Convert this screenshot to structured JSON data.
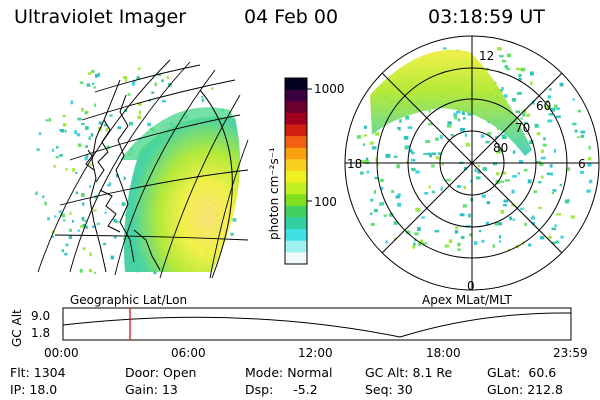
{
  "header": {
    "title": "Ultraviolet Imager",
    "date": "04 Feb 00",
    "time": "03:18:59 UT"
  },
  "panels": {
    "left_label": "Geographic Lat/Lon",
    "right_label": "Apex MLat/MLT"
  },
  "colorbar": {
    "unit_label": "photon cm⁻²s⁻¹",
    "tick_labels": [
      "1000",
      "100"
    ],
    "colors": [
      "#000020",
      "#3a0040",
      "#6a0030",
      "#a00020",
      "#d02010",
      "#f06010",
      "#f8a010",
      "#f8d020",
      "#f0f020",
      "#c0f020",
      "#80e020",
      "#40d060",
      "#30d0a0",
      "#40e0e0",
      "#a0f0f0",
      "#f0fafa"
    ]
  },
  "polar": {
    "mlt_labels": {
      "top": "12",
      "left": "18",
      "right": "6",
      "bottom": "0"
    },
    "mlat_labels": [
      "60",
      "70",
      "80"
    ]
  },
  "altitude_plot": {
    "ylabel": "GC Alt",
    "y_ticks": [
      "9.0",
      "1.8"
    ],
    "x_ticks": [
      "00:00",
      "06:00",
      "12:00",
      "18:00",
      "23:59"
    ],
    "cursor_color": "#e00000"
  },
  "info": {
    "flt": {
      "label": "Flt:",
      "value": "1304"
    },
    "ip": {
      "label": "IP:",
      "value": "18.0"
    },
    "door": {
      "label": "Door:",
      "value": "Open"
    },
    "gain": {
      "label": "Gain:",
      "value": "13"
    },
    "mode": {
      "label": "Mode:",
      "value": "Normal"
    },
    "dsp": {
      "label": "Dsp:",
      "value": "-5.2"
    },
    "gcalt": {
      "label": "GC Alt:",
      "value": "8.1 Re"
    },
    "seq": {
      "label": "Seq:",
      "value": "30"
    },
    "glat": {
      "label": "GLat:",
      "value": "60.6"
    },
    "glon": {
      "label": "GLon:",
      "value": "212.8"
    }
  }
}
